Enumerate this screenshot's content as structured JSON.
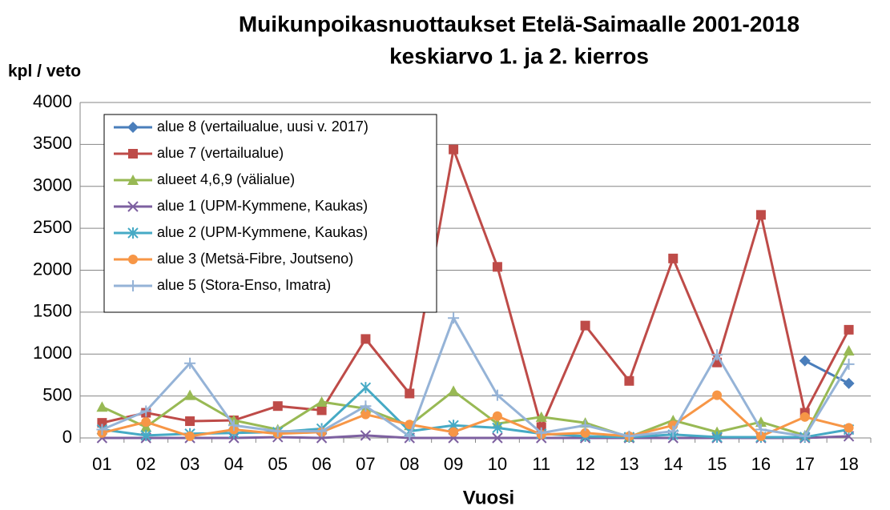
{
  "chart_data": {
    "type": "line",
    "title": "Muikunpoikasnuottaukset Etelä-Saimaalle 2001-2018",
    "subtitle": "keskiarvo 1. ja 2. kierros",
    "ylabel": "kpl / veto",
    "xlabel": "Vuosi",
    "categories": [
      "01",
      "02",
      "03",
      "04",
      "05",
      "06",
      "07",
      "08",
      "09",
      "10",
      "11",
      "12",
      "13",
      "14",
      "15",
      "16",
      "17",
      "18"
    ],
    "ylim": [
      0,
      4000
    ],
    "yticks": [
      0,
      500,
      1000,
      1500,
      2000,
      2500,
      3000,
      3500,
      4000
    ],
    "grid": true,
    "legend": "upper left",
    "series": [
      {
        "name": "alue 8 (vertailualue, uusi v. 2017)",
        "color": "#4a7ebb",
        "marker": "diamond",
        "values": [
          null,
          null,
          null,
          null,
          null,
          null,
          null,
          null,
          null,
          null,
          null,
          null,
          null,
          null,
          null,
          null,
          920,
          650
        ]
      },
      {
        "name": "alue 7 (vertailualue)",
        "color": "#be4b48",
        "marker": "square",
        "values": [
          180,
          300,
          200,
          210,
          380,
          330,
          1180,
          530,
          3440,
          2040,
          130,
          1340,
          680,
          2140,
          900,
          2660,
          300,
          1290
        ]
      },
      {
        "name": "alueet 4,6,9 (välialue)",
        "color": "#98b954",
        "marker": "triangle",
        "values": [
          370,
          130,
          510,
          210,
          100,
          430,
          350,
          150,
          560,
          170,
          250,
          180,
          10,
          210,
          70,
          190,
          30,
          1040
        ]
      },
      {
        "name": "alue 1 (UPM-Kymmene, Kaukas)",
        "color": "#7d60a0",
        "marker": "x",
        "values": [
          0,
          0,
          0,
          0,
          10,
          0,
          30,
          0,
          0,
          0,
          0,
          0,
          0,
          0,
          0,
          0,
          0,
          20
        ]
      },
      {
        "name": "alue 2 (UPM-Kymmene, Kaukas)",
        "color": "#46aac5",
        "marker": "asterisk",
        "values": [
          100,
          30,
          50,
          60,
          70,
          110,
          600,
          80,
          150,
          120,
          50,
          20,
          10,
          40,
          10,
          10,
          10,
          100
        ]
      },
      {
        "name": "alue 3 (Metsä-Fibre, Joutseno)",
        "color": "#f79646",
        "marker": "circle",
        "values": [
          60,
          190,
          20,
          100,
          50,
          70,
          280,
          160,
          70,
          260,
          40,
          60,
          20,
          150,
          510,
          20,
          250,
          120
        ]
      },
      {
        "name": "alue 5 (Stora-Enso, Imatra)",
        "color": "#95b3d7",
        "marker": "plus",
        "values": [
          100,
          320,
          890,
          150,
          80,
          80,
          380,
          20,
          1430,
          510,
          60,
          150,
          20,
          80,
          990,
          100,
          20,
          880
        ]
      }
    ]
  }
}
